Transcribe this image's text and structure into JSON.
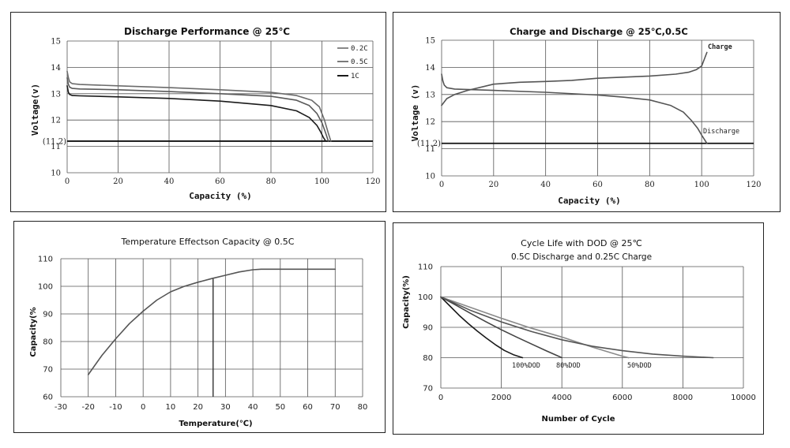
{
  "chart_data": [
    {
      "id": "p1",
      "type": "line",
      "title": "Discharge Performance @ 25℃",
      "xlabel": "Capacity (%)",
      "ylabel": "Voltage(v)",
      "xlim": [
        0,
        120
      ],
      "ylim": [
        10,
        15
      ],
      "xticks": [
        "0",
        "20",
        "40",
        "60",
        "80",
        "100",
        "120"
      ],
      "yticks": [
        "10",
        "11",
        "12",
        "13",
        "14",
        "15"
      ],
      "extra_ytick": {
        "value": 11.2,
        "label": "(11.2)"
      },
      "hlines": [
        11.2
      ],
      "legend": {
        "position": "top-right"
      },
      "series": [
        {
          "name": "0.2C",
          "color": "#6b6b6b",
          "x": [
            0,
            0.5,
            1,
            2,
            5,
            20,
            40,
            60,
            80,
            90,
            96,
            99,
            101,
            102.5,
            103.5
          ],
          "y": [
            13.85,
            13.6,
            13.45,
            13.38,
            13.35,
            13.3,
            13.23,
            13.15,
            13.05,
            12.93,
            12.75,
            12.5,
            12.0,
            11.5,
            11.2
          ]
        },
        {
          "name": "0.5C",
          "color": "#5a5a5a",
          "x": [
            0,
            0.5,
            1,
            2,
            5,
            20,
            40,
            60,
            80,
            90,
            95,
            98,
            100,
            101.5,
            102.5
          ],
          "y": [
            13.6,
            13.35,
            13.25,
            13.2,
            13.18,
            13.15,
            13.08,
            13.0,
            12.9,
            12.75,
            12.55,
            12.25,
            11.9,
            11.5,
            11.2
          ]
        },
        {
          "name": "1C",
          "color": "#1a1a1a",
          "x": [
            0,
            0.5,
            1,
            2,
            5,
            20,
            40,
            60,
            80,
            90,
            95,
            98,
            99.5,
            100.5,
            101.5
          ],
          "y": [
            13.3,
            13.05,
            12.97,
            12.93,
            12.92,
            12.88,
            12.82,
            12.72,
            12.55,
            12.35,
            12.1,
            11.8,
            11.55,
            11.35,
            11.2
          ]
        }
      ]
    },
    {
      "id": "p2",
      "type": "line",
      "title": "Charge and Discharge @ 25℃,0.5C",
      "xlabel": "Capacity (%)",
      "ylabel": "Voltage (v)",
      "xlim": [
        0,
        120
      ],
      "ylim": [
        10,
        15
      ],
      "xticks": [
        "0",
        "20",
        "40",
        "60",
        "80",
        "100",
        "120"
      ],
      "yticks": [
        "10",
        "11",
        "12",
        "13",
        "14",
        "15"
      ],
      "extra_ytick": {
        "value": 11.2,
        "label": "(11.2)"
      },
      "hlines": [
        11.2
      ],
      "series": [
        {
          "name": "Charge",
          "color": "#555555",
          "x": [
            0,
            2,
            5,
            10,
            20,
            30,
            40,
            50,
            60,
            70,
            80,
            90,
            95,
            98,
            100,
            101,
            102
          ],
          "y": [
            12.6,
            12.85,
            13.0,
            13.15,
            13.38,
            13.45,
            13.48,
            13.52,
            13.6,
            13.64,
            13.68,
            13.75,
            13.82,
            13.92,
            14.05,
            14.3,
            14.55
          ]
        },
        {
          "name": "Discharge",
          "color": "#555555",
          "x": [
            0,
            0.5,
            1,
            2,
            5,
            20,
            40,
            60,
            70,
            80,
            88,
            93,
            96,
            98.5,
            100,
            101,
            102
          ],
          "y": [
            13.75,
            13.5,
            13.35,
            13.25,
            13.2,
            13.15,
            13.08,
            12.98,
            12.9,
            12.8,
            12.6,
            12.35,
            12.05,
            11.75,
            11.5,
            11.35,
            11.2
          ]
        }
      ]
    },
    {
      "id": "p3",
      "type": "line",
      "title": "Temperature Effectson Capacity @ 0.5C",
      "xlabel": "Temperature(℃)",
      "ylabel": "Capacity(%",
      "xlim": [
        -30,
        80
      ],
      "ylim": [
        60,
        110
      ],
      "xticks": [
        "-30",
        "-20",
        "-10",
        "0",
        "10",
        "20",
        "30",
        "40",
        "50",
        "60",
        "70",
        "80"
      ],
      "yticks": [
        "60",
        "70",
        "80",
        "90",
        "100",
        "110"
      ],
      "vlines": [
        25.5
      ],
      "series": [
        {
          "name": "",
          "color": "#555555",
          "x": [
            -20,
            -15,
            -10,
            -5,
            0,
            5,
            10,
            15,
            20,
            25,
            30,
            35,
            40,
            43,
            50,
            60,
            70
          ],
          "y": [
            68,
            75,
            81,
            86.5,
            91,
            95,
            98,
            100,
            101.5,
            102.8,
            104,
            105.2,
            106,
            106.2,
            106.2,
            106.2,
            106.2
          ]
        }
      ]
    },
    {
      "id": "p4",
      "type": "line",
      "title": "Cycle Life with DOD @ 25℃",
      "subtitle": "0.5C Discharge and 0.25C Charge",
      "xlabel": "Number of Cycle",
      "ylabel": "Capacity(%)",
      "xlim": [
        0,
        10000
      ],
      "ylim": [
        70,
        110
      ],
      "xticks": [
        "0",
        "2000",
        "4000",
        "6000",
        "8000",
        "10000"
      ],
      "yticks": [
        "70",
        "80",
        "90",
        "100",
        "110"
      ],
      "series": [
        {
          "name": "100%DOD",
          "color": "#1a1a1a",
          "x": [
            0,
            300,
            600,
            900,
            1200,
            1500,
            1800,
            2100,
            2400,
            2700
          ],
          "y": [
            100,
            97,
            94,
            91.3,
            88.8,
            86.5,
            84.3,
            82.4,
            81,
            80
          ]
        },
        {
          "name": "80%DOD",
          "color": "#444444",
          "x": [
            0,
            500,
            1000,
            1500,
            2000,
            2500,
            3000,
            3500,
            4000
          ],
          "y": [
            100,
            97.3,
            94.5,
            91.8,
            89.2,
            86.8,
            84.5,
            82.2,
            80
          ]
        },
        {
          "name": "",
          "color": "#8a8a8a",
          "x": [
            0,
            1000,
            2000,
            3000,
            4000,
            5000,
            6000,
            6200
          ],
          "y": [
            100,
            96.5,
            93,
            89.7,
            86.8,
            83.5,
            80.5,
            80
          ]
        },
        {
          "name": "50%DOD",
          "color": "#555555",
          "x": [
            0,
            1000,
            2000,
            3000,
            4000,
            5000,
            6000,
            7000,
            8000,
            9000
          ],
          "y": [
            100,
            95.5,
            91.8,
            88.6,
            85.9,
            83.8,
            82.3,
            81.2,
            80.5,
            80
          ]
        }
      ]
    }
  ]
}
